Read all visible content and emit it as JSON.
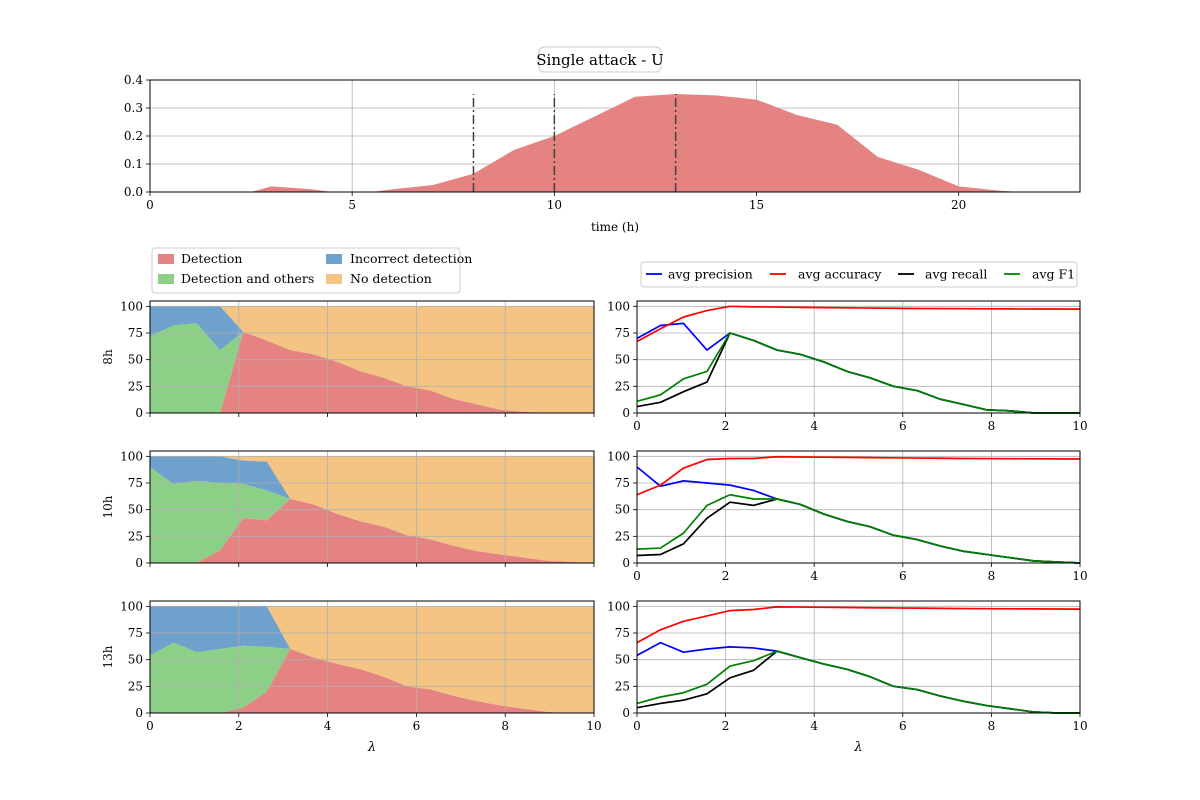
{
  "figure": {
    "title": "Single attack - U"
  },
  "chart_data": [
    {
      "id": "top",
      "type": "area",
      "title": "Single attack - U",
      "xlabel": "time (h)",
      "ylabel": "",
      "xlim": [
        0,
        23
      ],
      "ylim": [
        0,
        0.4
      ],
      "xticks": [
        0,
        5,
        10,
        15,
        20
      ],
      "yticks": [
        0.0,
        0.1,
        0.2,
        0.3,
        0.4
      ],
      "ytick_labels": [
        "0.0",
        "0.1",
        "0.2",
        "0.3",
        "0.4"
      ],
      "grid": true,
      "color": "#e58383",
      "x": [
        0,
        1,
        2,
        2.5,
        3,
        4,
        4.5,
        5,
        5.5,
        6,
        7,
        8,
        9,
        10,
        11,
        12,
        13,
        14,
        15,
        16,
        17,
        18,
        19,
        20,
        21,
        21.5,
        22,
        23
      ],
      "y": [
        0,
        0,
        0,
        0,
        0.02,
        0.01,
        0,
        0,
        0,
        0.01,
        0.025,
        0.065,
        0.15,
        0.2,
        0.27,
        0.34,
        0.35,
        0.345,
        0.33,
        0.275,
        0.24,
        0.125,
        0.08,
        0.02,
        0.005,
        0,
        0,
        0
      ],
      "vlines": [
        {
          "x": 8,
          "ymax": 0.35
        },
        {
          "x": 10,
          "ymax": 0.35
        },
        {
          "x": 13,
          "ymax": 0.35
        }
      ]
    },
    {
      "id": "left",
      "type": "area",
      "stacked": true,
      "xlabel": "λ",
      "xlim": [
        0,
        10
      ],
      "ylim": [
        0,
        105
      ],
      "xticks": [
        0,
        2,
        4,
        6,
        8,
        10
      ],
      "yticks": [
        0,
        25,
        50,
        75,
        100
      ],
      "grid": true,
      "legend": {
        "placement": "above",
        "entries": [
          {
            "label": "Detection",
            "color": "#e58383"
          },
          {
            "label": "Incorrect detection",
            "color": "#6fa1cd"
          },
          {
            "label": "Detection and others",
            "color": "#8ccf87"
          },
          {
            "label": "No detection",
            "color": "#f4c482"
          }
        ]
      },
      "panels": [
        {
          "ylabel": "8h",
          "lambda": [
            0,
            0.53,
            1.05,
            1.58,
            2.1,
            2.63,
            3.16,
            3.68,
            4.21,
            4.74,
            5.26,
            5.79,
            6.32,
            6.84,
            7.37,
            7.89,
            8.42,
            8.95,
            9.47,
            10
          ],
          "detection": [
            0,
            0,
            0,
            0,
            76,
            68,
            59,
            55,
            48,
            39,
            33,
            25,
            21,
            13,
            8,
            3,
            1,
            0,
            0,
            0
          ],
          "detection_and_others": [
            72,
            82,
            84,
            59,
            0,
            0,
            0,
            0,
            0,
            0,
            0,
            0,
            0,
            0,
            0,
            0,
            0,
            0,
            0,
            0
          ],
          "incorrect_detection": [
            28,
            18,
            16,
            41,
            0,
            0,
            0,
            0,
            0,
            0,
            0,
            0,
            0,
            0,
            0,
            0,
            0,
            0,
            0,
            0
          ]
        },
        {
          "ylabel": "10h",
          "lambda": [
            0,
            0.53,
            1.05,
            1.58,
            2.1,
            2.63,
            3.16,
            3.68,
            4.21,
            4.74,
            5.26,
            5.79,
            6.32,
            6.84,
            7.37,
            7.89,
            8.42,
            8.95,
            9.47,
            10
          ],
          "detection": [
            0,
            0,
            0,
            12,
            42,
            40,
            60,
            55,
            46,
            39,
            34,
            26,
            22,
            16,
            11,
            8,
            5,
            2,
            1,
            0
          ],
          "detection_and_others": [
            90,
            74,
            77,
            63,
            32,
            28,
            0,
            0,
            0,
            0,
            0,
            0,
            0,
            0,
            0,
            0,
            0,
            0,
            0,
            0
          ],
          "incorrect_detection": [
            10,
            26,
            23,
            25,
            22,
            27,
            0,
            0,
            0,
            0,
            0,
            0,
            0,
            0,
            0,
            0,
            0,
            0,
            0,
            0
          ]
        },
        {
          "ylabel": "13h",
          "lambda": [
            0,
            0.53,
            1.05,
            1.58,
            2.1,
            2.63,
            3.16,
            3.68,
            4.21,
            4.74,
            5.26,
            5.79,
            6.32,
            6.84,
            7.37,
            7.89,
            8.42,
            8.95,
            9.47,
            10
          ],
          "detection": [
            0,
            0,
            0,
            0,
            5,
            20,
            60,
            52,
            46,
            41,
            34,
            25,
            22,
            16,
            11,
            7,
            4,
            1,
            0,
            0
          ],
          "detection_and_others": [
            54,
            66,
            57,
            60,
            58,
            42,
            0,
            0,
            0,
            0,
            0,
            0,
            0,
            0,
            0,
            0,
            0,
            0,
            0,
            0
          ],
          "incorrect_detection": [
            46,
            34,
            43,
            40,
            37,
            38,
            0,
            0,
            0,
            0,
            0,
            0,
            0,
            0,
            0,
            0,
            0,
            0,
            0,
            0
          ]
        }
      ]
    },
    {
      "id": "right",
      "type": "line",
      "xlabel": "λ",
      "xlim": [
        0,
        10
      ],
      "ylim": [
        0,
        105
      ],
      "xticks": [
        0,
        2,
        4,
        6,
        8,
        10
      ],
      "yticks": [
        0,
        25,
        50,
        75,
        100
      ],
      "grid": true,
      "legend": {
        "placement": "above",
        "entries": [
          {
            "label": "avg precision",
            "color": "#0000ff"
          },
          {
            "label": "avg accuracy",
            "color": "#ff0000"
          },
          {
            "label": "avg recall",
            "color": "#000000"
          },
          {
            "label": "avg F1",
            "color": "#008000"
          }
        ]
      },
      "panels": [
        {
          "lambda": [
            0,
            0.53,
            1.05,
            1.58,
            2.1,
            2.63,
            3.16,
            3.68,
            4.21,
            4.74,
            5.26,
            5.79,
            6.32,
            6.84,
            7.37,
            7.89,
            8.42,
            8.95,
            9.47,
            10
          ],
          "series": [
            {
              "name": "avg precision",
              "color": "#0000ff",
              "values": [
                70,
                82,
                84,
                59,
                75,
                68,
                59,
                55,
                48,
                39,
                33,
                25,
                21,
                13,
                8,
                3,
                2,
                0,
                0,
                0
              ]
            },
            {
              "name": "avg accuracy",
              "color": "#ff0000",
              "values": [
                67,
                79,
                90,
                96,
                100,
                99.5,
                99.3,
                99,
                98.8,
                98.6,
                98.4,
                98.2,
                98,
                97.9,
                97.8,
                97.7,
                97.6,
                97.5,
                97.5,
                97.4
              ]
            },
            {
              "name": "avg recall",
              "color": "#000000",
              "values": [
                6,
                10,
                20,
                29,
                75,
                68,
                59,
                55,
                48,
                39,
                33,
                25,
                21,
                13,
                8,
                3,
                2,
                0,
                0,
                0
              ]
            },
            {
              "name": "avg F1",
              "color": "#008000",
              "values": [
                11,
                17,
                32,
                39,
                75,
                68,
                59,
                55,
                48,
                39,
                33,
                25,
                21,
                13,
                8,
                3,
                2,
                0,
                0,
                0
              ]
            }
          ]
        },
        {
          "lambda": [
            0,
            0.53,
            1.05,
            1.58,
            2.1,
            2.63,
            3.16,
            3.68,
            4.21,
            4.74,
            5.26,
            5.79,
            6.32,
            6.84,
            7.37,
            7.89,
            8.42,
            8.95,
            9.47,
            10
          ],
          "series": [
            {
              "name": "avg precision",
              "color": "#0000ff",
              "values": [
                90,
                72,
                77,
                75,
                73,
                68,
                60,
                55,
                46,
                39,
                34,
                26,
                22,
                16,
                11,
                8,
                5,
                2,
                1,
                0
              ]
            },
            {
              "name": "avg accuracy",
              "color": "#ff0000",
              "values": [
                64,
                73,
                89,
                97,
                98,
                98,
                99.6,
                99.4,
                99.2,
                99,
                98.8,
                98.6,
                98.4,
                98.2,
                98,
                97.9,
                97.8,
                97.7,
                97.6,
                97.5
              ]
            },
            {
              "name": "avg recall",
              "color": "#000000",
              "values": [
                7,
                8,
                18,
                42,
                57,
                54,
                60,
                55,
                46,
                39,
                34,
                26,
                22,
                16,
                11,
                8,
                5,
                2,
                1,
                0
              ]
            },
            {
              "name": "avg F1",
              "color": "#008000",
              "values": [
                13,
                14,
                28,
                54,
                64,
                60,
                60,
                55,
                46,
                39,
                34,
                26,
                22,
                16,
                11,
                8,
                5,
                2,
                1,
                0
              ]
            }
          ]
        },
        {
          "lambda": [
            0,
            0.53,
            1.05,
            1.58,
            2.1,
            2.63,
            3.16,
            3.68,
            4.21,
            4.74,
            5.26,
            5.79,
            6.32,
            6.84,
            7.37,
            7.89,
            8.42,
            8.95,
            9.47,
            10
          ],
          "series": [
            {
              "name": "avg precision",
              "color": "#0000ff",
              "values": [
                54,
                66,
                57,
                60,
                62,
                61,
                58,
                52,
                46,
                41,
                34,
                25,
                22,
                16,
                11,
                7,
                4,
                1,
                0,
                0
              ]
            },
            {
              "name": "avg accuracy",
              "color": "#ff0000",
              "values": [
                66,
                78,
                86,
                91,
                96,
                97,
                99.5,
                99.3,
                99.1,
                98.9,
                98.7,
                98.5,
                98.3,
                98.1,
                97.9,
                97.8,
                97.7,
                97.6,
                97.5,
                97.4
              ]
            },
            {
              "name": "avg recall",
              "color": "#000000",
              "values": [
                5,
                9,
                12,
                18,
                33,
                40,
                58,
                52,
                46,
                41,
                34,
                25,
                22,
                16,
                11,
                7,
                4,
                1,
                0,
                0
              ]
            },
            {
              "name": "avg F1",
              "color": "#008000",
              "values": [
                9,
                15,
                19,
                27,
                44,
                49,
                58,
                52,
                46,
                41,
                34,
                25,
                22,
                16,
                11,
                7,
                4,
                1,
                0,
                0
              ]
            }
          ]
        }
      ]
    }
  ]
}
